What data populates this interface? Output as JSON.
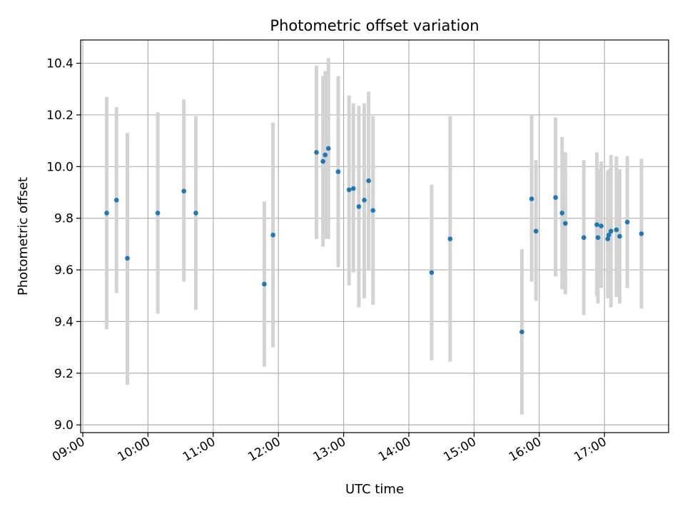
{
  "chart_data": {
    "type": "scatter",
    "title": "Photometric offset variation",
    "xlabel": "UTC time",
    "ylabel": "Photometric offset",
    "x_ticks": [
      "09:00",
      "10:00",
      "11:00",
      "12:00",
      "13:00",
      "14:00",
      "15:00",
      "16:00",
      "17:00"
    ],
    "y_ticks": [
      "9.0",
      "9.2",
      "9.4",
      "9.6",
      "9.8",
      "10.0",
      "10.2",
      "10.4"
    ],
    "xlim": [
      "08:58",
      "17:59"
    ],
    "ylim": [
      8.97,
      10.49
    ],
    "grid": true,
    "point_color": "#1f77b4",
    "errorbar_color": "#d3d3d3",
    "points": [
      {
        "x": "09:22",
        "y": 9.82,
        "ylow": 9.37,
        "yhigh": 10.27
      },
      {
        "x": "09:31",
        "y": 9.87,
        "ylow": 9.51,
        "yhigh": 10.23
      },
      {
        "x": "09:41",
        "y": 9.645,
        "ylow": 9.155,
        "yhigh": 10.13
      },
      {
        "x": "10:09",
        "y": 9.82,
        "ylow": 9.43,
        "yhigh": 10.21
      },
      {
        "x": "10:33",
        "y": 9.905,
        "ylow": 9.555,
        "yhigh": 10.26
      },
      {
        "x": "10:44",
        "y": 9.82,
        "ylow": 9.445,
        "yhigh": 10.195
      },
      {
        "x": "11:47",
        "y": 9.545,
        "ylow": 9.225,
        "yhigh": 9.865
      },
      {
        "x": "11:55",
        "y": 9.735,
        "ylow": 9.3,
        "yhigh": 10.17
      },
      {
        "x": "12:35",
        "y": 10.055,
        "ylow": 9.72,
        "yhigh": 10.39
      },
      {
        "x": "12:41",
        "y": 10.02,
        "ylow": 9.69,
        "yhigh": 10.35
      },
      {
        "x": "12:43",
        "y": 10.045,
        "ylow": 9.72,
        "yhigh": 10.37
      },
      {
        "x": "12:46",
        "y": 10.07,
        "ylow": 9.72,
        "yhigh": 10.42
      },
      {
        "x": "12:55",
        "y": 9.98,
        "ylow": 9.61,
        "yhigh": 10.35
      },
      {
        "x": "13:05",
        "y": 9.91,
        "ylow": 9.54,
        "yhigh": 10.275
      },
      {
        "x": "13:09",
        "y": 9.915,
        "ylow": 9.59,
        "yhigh": 10.245
      },
      {
        "x": "13:14",
        "y": 9.845,
        "ylow": 9.455,
        "yhigh": 10.235
      },
      {
        "x": "13:19",
        "y": 9.87,
        "ylow": 9.49,
        "yhigh": 10.245
      },
      {
        "x": "13:23",
        "y": 9.945,
        "ylow": 9.6,
        "yhigh": 10.29
      },
      {
        "x": "13:27",
        "y": 9.83,
        "ylow": 9.465,
        "yhigh": 10.195
      },
      {
        "x": "14:21",
        "y": 9.59,
        "ylow": 9.25,
        "yhigh": 9.93
      },
      {
        "x": "14:38",
        "y": 9.72,
        "ylow": 9.245,
        "yhigh": 10.195
      },
      {
        "x": "15:44",
        "y": 9.36,
        "ylow": 9.04,
        "yhigh": 9.68
      },
      {
        "x": "15:53",
        "y": 9.875,
        "ylow": 9.555,
        "yhigh": 10.2
      },
      {
        "x": "15:57",
        "y": 9.75,
        "ylow": 9.48,
        "yhigh": 10.025
      },
      {
        "x": "16:15",
        "y": 9.88,
        "ylow": 9.575,
        "yhigh": 10.19
      },
      {
        "x": "16:21",
        "y": 9.82,
        "ylow": 9.525,
        "yhigh": 10.115
      },
      {
        "x": "16:24",
        "y": 9.78,
        "ylow": 9.505,
        "yhigh": 10.055
      },
      {
        "x": "16:41",
        "y": 9.725,
        "ylow": 9.425,
        "yhigh": 10.025
      },
      {
        "x": "16:53",
        "y": 9.775,
        "ylow": 9.5,
        "yhigh": 10.055
      },
      {
        "x": "16:54",
        "y": 9.725,
        "ylow": 9.47,
        "yhigh": 9.99
      },
      {
        "x": "16:57",
        "y": 9.77,
        "ylow": 9.53,
        "yhigh": 10.02
      },
      {
        "x": "17:03",
        "y": 9.72,
        "ylow": 9.49,
        "yhigh": 9.98
      },
      {
        "x": "17:04",
        "y": 9.735,
        "ylow": 9.49,
        "yhigh": 9.99
      },
      {
        "x": "17:06",
        "y": 9.75,
        "ylow": 9.455,
        "yhigh": 10.045
      },
      {
        "x": "17:11",
        "y": 9.755,
        "ylow": 9.495,
        "yhigh": 10.04
      },
      {
        "x": "17:14",
        "y": 9.73,
        "ylow": 9.47,
        "yhigh": 9.99
      },
      {
        "x": "17:21",
        "y": 9.785,
        "ylow": 9.53,
        "yhigh": 10.04
      },
      {
        "x": "17:34",
        "y": 9.74,
        "ylow": 9.45,
        "yhigh": 10.03
      }
    ]
  }
}
